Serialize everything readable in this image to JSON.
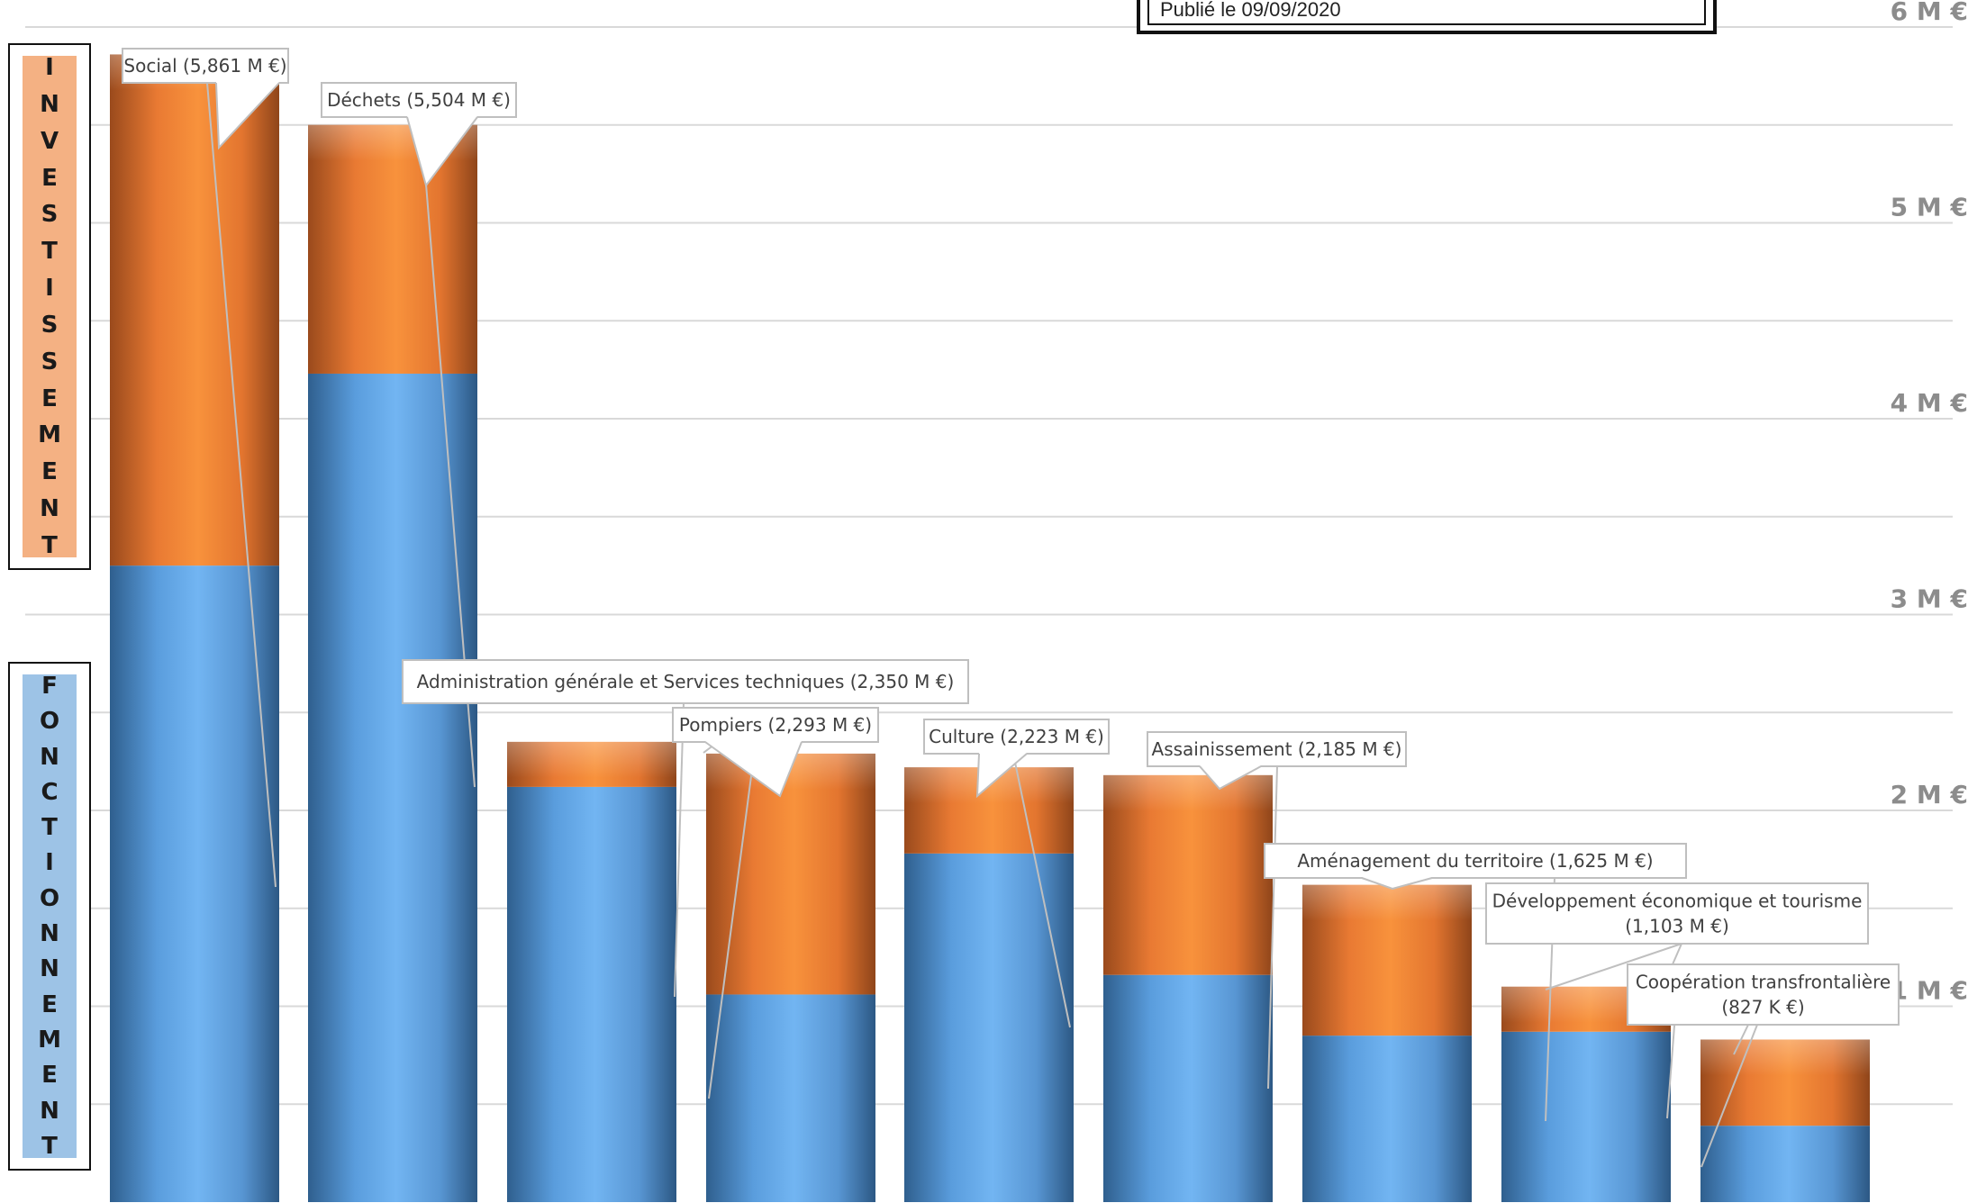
{
  "chart_data": {
    "type": "bar",
    "stacked": true,
    "orientation": "vertical",
    "legend_text": "Publié le 09/09/2020",
    "side_labels": {
      "investissement": "INVESTISSEMENT",
      "fonctionnement": "FONCTIONNEMENT"
    },
    "ylim": [
      0,
      6.3
    ],
    "yticks": [
      {
        "value": 1,
        "label": "1 M €"
      },
      {
        "value": 2,
        "label": "2 M €"
      },
      {
        "value": 3,
        "label": "3 M €"
      },
      {
        "value": 4,
        "label": "4 M €"
      },
      {
        "value": 5,
        "label": "5 M €"
      },
      {
        "value": 6,
        "label": "6 M €"
      }
    ],
    "grid": true,
    "colors": {
      "fonctionnement": "#5b9bd5",
      "fonctionnement_light": "#7ab8f0",
      "investissement": "#ed7d31",
      "investissement_light": "#f7a15a",
      "grid": "#d9d9d9",
      "tick_label": "#8c8c8c",
      "side_invest_bg": "#f4b183",
      "side_fonct_bg": "#9dc3e6"
    },
    "categories": [
      "Social (5,861 M €)",
      "Déchets (5,504 M €)",
      "Administration générale et Services techniques (2,350 M €)",
      "Pompiers (2,293 M €)",
      "Culture (2,223 M €)",
      "Assainissement (2,185 M €)",
      "Aménagement du territoire (1,625 M €)",
      "Développement économique et tourisme (1,103 M €)",
      "Coopération transfrontalière (827 K €)"
    ],
    "label_lines": [
      [
        "Social (5,861 M €)"
      ],
      [
        "Déchets (5,504 M €)"
      ],
      [
        "Administration générale et Services techniques (2,350 M €)"
      ],
      [
        "Pompiers (2,293 M €)"
      ],
      [
        "Culture (2,223 M €)"
      ],
      [
        "Assainissement (2,185 M €)"
      ],
      [
        "Aménagement du territoire (1,625 M €)"
      ],
      [
        "Développement économique et tourisme",
        "(1,103 M €)"
      ],
      [
        "Coopération transfrontalière",
        "(827 K €)"
      ]
    ],
    "series": [
      {
        "key": "fonctionnement",
        "values": [
          3.25,
          4.23,
          2.12,
          1.06,
          1.78,
          1.16,
          0.85,
          0.87,
          0.39
        ]
      },
      {
        "key": "investissement",
        "values": [
          2.61,
          1.27,
          0.23,
          1.23,
          0.44,
          1.02,
          0.77,
          0.23,
          0.44
        ]
      }
    ],
    "totals": [
      5.861,
      5.504,
      2.35,
      2.293,
      2.223,
      2.185,
      1.625,
      1.103,
      0.827
    ]
  }
}
